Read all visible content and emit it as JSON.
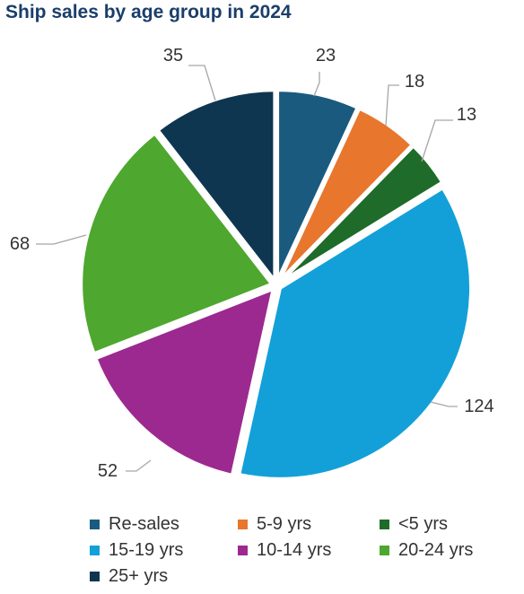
{
  "chart_data": {
    "type": "pie",
    "title": "Ship sales by age group in 2024",
    "slices": [
      {
        "name": "Re-sales",
        "value": 23,
        "color": "#1a5a7e"
      },
      {
        "name": "5-9 yrs",
        "value": 18,
        "color": "#e8762d"
      },
      {
        "name": "<5 yrs",
        "value": 13,
        "color": "#1e6b2a"
      },
      {
        "name": "15-19 yrs",
        "value": 124,
        "color": "#13a0d8"
      },
      {
        "name": "10-14 yrs",
        "value": 52,
        "color": "#9c2990"
      },
      {
        "name": "20-24 yrs",
        "value": 68,
        "color": "#4ea72e"
      },
      {
        "name": "25+ yrs",
        "value": 35,
        "color": "#0f3650"
      }
    ],
    "legend_order": [
      "Re-sales",
      "5-9 yrs",
      "<5 yrs",
      "15-19 yrs",
      "10-14 yrs",
      "20-24 yrs",
      "25+ yrs"
    ],
    "legend_placement": "bottom"
  }
}
